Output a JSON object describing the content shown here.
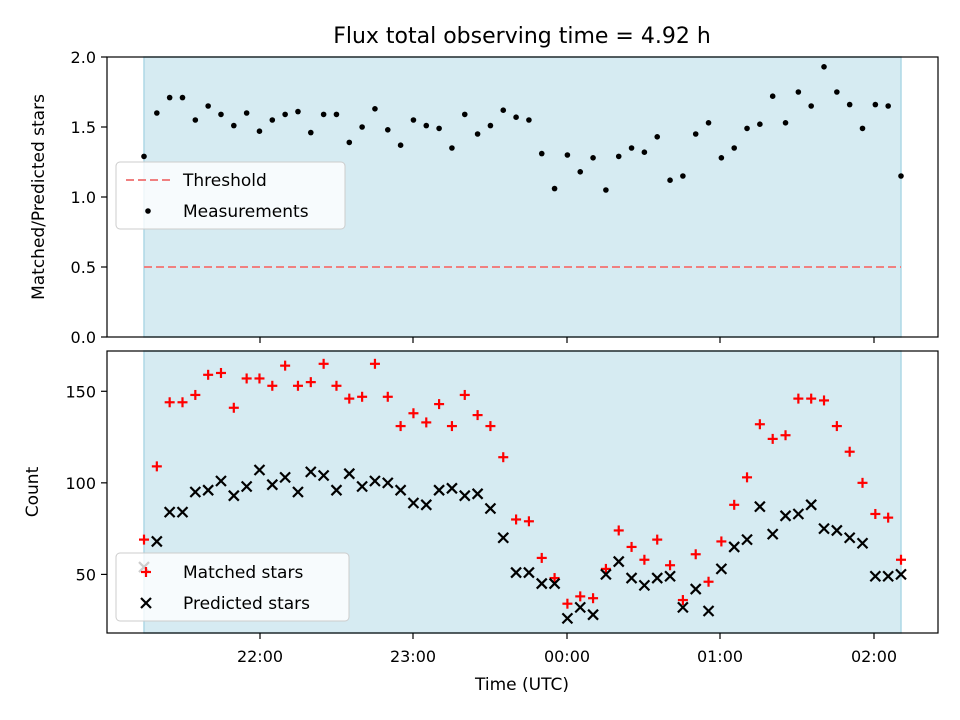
{
  "chart_data": [
    {
      "type": "scatter",
      "title": "Flux total observing time = 4.92 h",
      "xlabel": "",
      "ylabel": "Matched/Predicted stars",
      "ylim": [
        0,
        2.0
      ],
      "yticks": [
        "0.0",
        "0.5",
        "1.0",
        "1.5",
        "2.0"
      ],
      "legend_position": "center-left",
      "shaded_interval_colour": "#add8e6",
      "threshold": {
        "name": "Threshold",
        "value": 0.5,
        "color": "#f08080",
        "style": "dashed"
      },
      "series": [
        {
          "name": "Measurements",
          "color": "#000000",
          "marker": "dot",
          "y": [
            1.29,
            1.6,
            1.71,
            1.71,
            1.55,
            1.65,
            1.59,
            1.51,
            1.6,
            1.47,
            1.55,
            1.59,
            1.61,
            1.46,
            1.59,
            1.59,
            1.39,
            1.5,
            1.63,
            1.48,
            1.37,
            1.55,
            1.51,
            1.49,
            1.35,
            1.59,
            1.45,
            1.51,
            1.62,
            1.57,
            1.55,
            1.31,
            1.06,
            1.3,
            1.18,
            1.28,
            1.05,
            1.29,
            1.35,
            1.32,
            1.43,
            1.12,
            1.15,
            1.45,
            1.53,
            1.28,
            1.35,
            1.49,
            1.52,
            1.72,
            1.53,
            1.75,
            1.65,
            1.93,
            1.75,
            1.66,
            1.49,
            1.66,
            1.65,
            1.15
          ]
        }
      ]
    },
    {
      "type": "scatter",
      "xlabel": "Time (UTC)",
      "ylabel": "Count",
      "ylim": [
        18,
        172
      ],
      "yticks": [
        "50",
        "100",
        "150"
      ],
      "xticks": [
        "22:00",
        "23:00",
        "00:00",
        "01:00",
        "02:00"
      ],
      "legend_position": "bottom-left",
      "shaded_interval_colour": "#add8e6",
      "series": [
        {
          "name": "Matched stars",
          "color": "#ff0000",
          "marker": "plus",
          "y": [
            69,
            109,
            144,
            144,
            148,
            159,
            160,
            141,
            157,
            157,
            153,
            164,
            153,
            155,
            165,
            153,
            146,
            147,
            165,
            147,
            131,
            138,
            133,
            143,
            131,
            148,
            137,
            131,
            114,
            80,
            79,
            59,
            48,
            34,
            38,
            37,
            53,
            74,
            65,
            58,
            69,
            55,
            36,
            61,
            46,
            68,
            88,
            103,
            132,
            124,
            126,
            146,
            146,
            145,
            131,
            117,
            100,
            83,
            81,
            58
          ]
        },
        {
          "name": "Predicted stars",
          "color": "#000000",
          "marker": "x",
          "y": [
            54,
            68,
            84,
            84,
            95,
            96,
            101,
            93,
            98,
            107,
            99,
            103,
            95,
            106,
            104,
            96,
            105,
            98,
            101,
            100,
            96,
            89,
            88,
            96,
            97,
            93,
            94,
            86,
            70,
            51,
            51,
            45,
            45,
            26,
            32,
            28,
            50,
            57,
            48,
            44,
            48,
            49,
            32,
            42,
            30,
            53,
            65,
            69,
            87,
            72,
            82,
            83,
            88,
            75,
            74,
            70,
            67,
            49,
            49,
            50
          ]
        }
      ]
    }
  ]
}
